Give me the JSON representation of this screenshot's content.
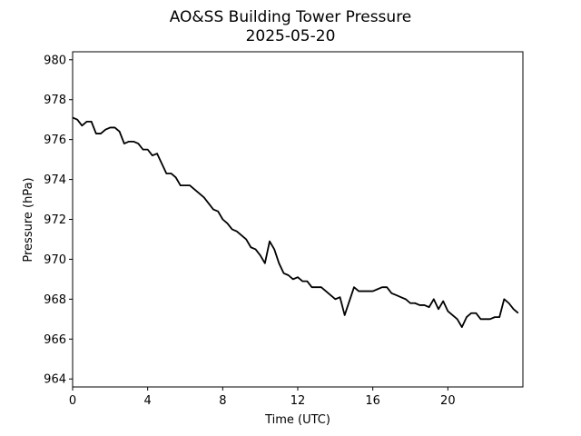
{
  "chart_data": {
    "type": "line",
    "title": "AO&SS Building Tower Pressure",
    "subtitle": "2025-05-20",
    "x_label": "Time (UTC)",
    "y_label": "Pressure (hPa)",
    "xlim": [
      0,
      24
    ],
    "ylim": [
      963.6,
      980.4
    ],
    "xticks": [
      0,
      4,
      8,
      12,
      16,
      20
    ],
    "yticks": [
      964,
      966,
      968,
      970,
      972,
      974,
      976,
      978,
      980
    ],
    "grid": false,
    "x": [
      0,
      0.25,
      0.5,
      0.75,
      1,
      1.25,
      1.5,
      1.75,
      2,
      2.25,
      2.5,
      2.75,
      3,
      3.25,
      3.5,
      3.75,
      4,
      4.25,
      4.5,
      4.75,
      5,
      5.25,
      5.5,
      5.75,
      6,
      6.25,
      6.5,
      6.75,
      7,
      7.25,
      7.5,
      7.75,
      8,
      8.25,
      8.5,
      8.75,
      9,
      9.25,
      9.5,
      9.75,
      10,
      10.25,
      10.5,
      10.75,
      11,
      11.25,
      11.5,
      11.75,
      12,
      12.25,
      12.5,
      12.75,
      13,
      13.25,
      13.5,
      13.75,
      14,
      14.25,
      14.5,
      14.75,
      15,
      15.25,
      15.5,
      15.75,
      16,
      16.25,
      16.5,
      16.75,
      17,
      17.25,
      17.5,
      17.75,
      18,
      18.25,
      18.5,
      18.75,
      19,
      19.25,
      19.5,
      19.75,
      20,
      20.25,
      20.5,
      20.75,
      21,
      21.25,
      21.5,
      21.75,
      22,
      22.25,
      22.5,
      22.75,
      23,
      23.25,
      23.5,
      23.75
    ],
    "series": [
      {
        "name": "Pressure",
        "color": "#000000",
        "values": [
          977.1,
          977.0,
          976.7,
          976.9,
          976.9,
          976.3,
          976.3,
          976.5,
          976.6,
          976.6,
          976.4,
          975.8,
          975.9,
          975.9,
          975.8,
          975.5,
          975.5,
          975.2,
          975.3,
          974.8,
          974.3,
          974.3,
          974.1,
          973.7,
          973.7,
          973.7,
          973.5,
          973.3,
          973.1,
          972.8,
          972.5,
          972.4,
          972.0,
          971.8,
          971.5,
          971.4,
          971.2,
          971.0,
          970.6,
          970.5,
          970.2,
          969.8,
          970.9,
          970.5,
          969.8,
          969.3,
          969.2,
          969.0,
          969.1,
          968.9,
          968.9,
          968.6,
          968.6,
          968.6,
          968.4,
          968.2,
          968.0,
          968.1,
          967.2,
          967.9,
          968.6,
          968.4,
          968.4,
          968.4,
          968.4,
          968.5,
          968.6,
          968.6,
          968.3,
          968.2,
          968.1,
          968.0,
          967.8,
          967.8,
          967.7,
          967.7,
          967.6,
          968.0,
          967.5,
          967.9,
          967.4,
          967.2,
          967.0,
          966.6,
          967.1,
          967.3,
          967.3,
          967.0,
          967.0,
          967.0,
          967.1,
          967.1,
          968.0,
          967.8,
          967.5,
          967.3
        ]
      }
    ]
  }
}
